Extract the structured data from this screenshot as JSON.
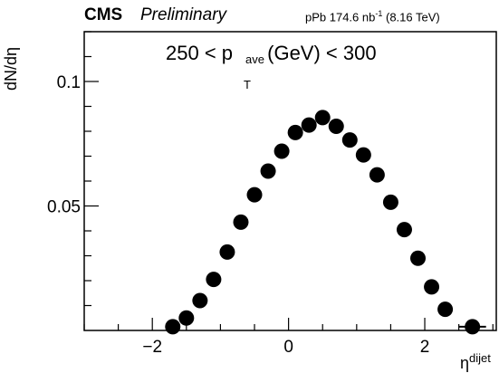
{
  "header": {
    "experiment": "CMS",
    "status": "Preliminary",
    "lumi_prefix": "pPb 174.6 nb",
    "lumi_exp": "-1",
    "energy": "(8.16 TeV)"
  },
  "annotation": {
    "left": "250 < p",
    "sup": "ave",
    "sub": "T",
    "right": " (GeV) < 300"
  },
  "chart_data": {
    "type": "scatter",
    "ylabel": "dN/dη",
    "xlabel_base": "η",
    "xlabel_sup": "dijet",
    "xlim": [
      -3.0,
      3.05
    ],
    "ylim": [
      0.0,
      0.12
    ],
    "x_ticks": [
      -2,
      0,
      2
    ],
    "x_tick_labels": [
      "−2",
      "0",
      "2"
    ],
    "y_ticks": [
      0.05,
      0.1
    ],
    "y_tick_labels": [
      "0.05",
      "0.1"
    ],
    "grid": false,
    "legend": "none",
    "marker_color": "#000000",
    "series": [
      {
        "x": [
          -1.7,
          -1.5,
          -1.3,
          -1.1,
          -0.9,
          -0.7,
          -0.5,
          -0.3,
          -0.1,
          0.1,
          0.3,
          0.5,
          0.7,
          0.9,
          1.1,
          1.3,
          1.5,
          1.7,
          1.9,
          2.1,
          2.3,
          2.7
        ],
        "y": [
          0.0015,
          0.005,
          0.012,
          0.0205,
          0.0315,
          0.0435,
          0.0545,
          0.064,
          0.072,
          0.0795,
          0.0825,
          0.0855,
          0.082,
          0.0765,
          0.0705,
          0.0625,
          0.0515,
          0.0405,
          0.029,
          0.0175,
          0.0085,
          0.0015
        ]
      }
    ]
  }
}
